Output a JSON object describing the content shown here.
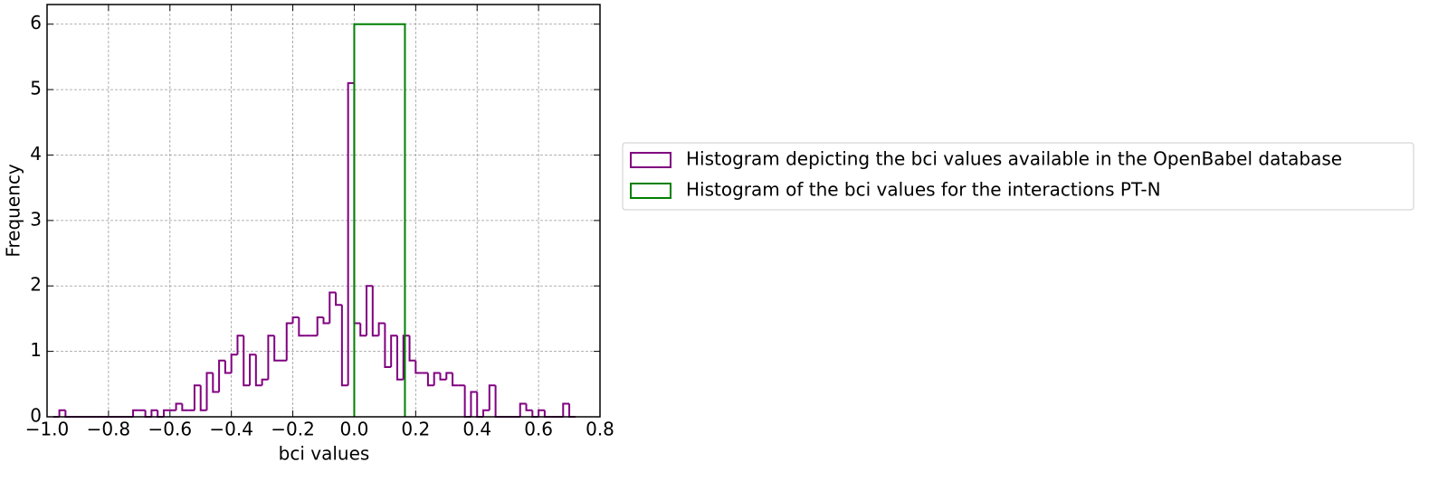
{
  "chart_data": {
    "type": "histogram",
    "xlabel": "bci values",
    "ylabel": "Frequency",
    "xlim": [
      -1.0,
      0.8
    ],
    "ylim": [
      0,
      6.3
    ],
    "xticks": [
      {
        "value": -1.0,
        "label": "−1.0"
      },
      {
        "value": -0.8,
        "label": "−0.8"
      },
      {
        "value": -0.6,
        "label": "−0.6"
      },
      {
        "value": -0.4,
        "label": "−0.4"
      },
      {
        "value": -0.2,
        "label": "−0.2"
      },
      {
        "value": 0.0,
        "label": "0.0"
      },
      {
        "value": 0.2,
        "label": "0.2"
      },
      {
        "value": 0.4,
        "label": "0.4"
      },
      {
        "value": 0.6,
        "label": "0.6"
      },
      {
        "value": 0.8,
        "label": "0.8"
      }
    ],
    "yticks": [
      0,
      1,
      2,
      3,
      4,
      5,
      6
    ],
    "grid": true,
    "legend": "right",
    "series": [
      {
        "name": "Histogram depicting the bci values available in the OpenBabel database",
        "color": "#800080",
        "bins": [
          -0.98,
          -0.96,
          -0.94,
          -0.92,
          -0.9,
          -0.88,
          -0.86,
          -0.84,
          -0.82,
          -0.8,
          -0.78,
          -0.76,
          -0.74,
          -0.72,
          -0.7,
          -0.68,
          -0.66,
          -0.64,
          -0.62,
          -0.6,
          -0.58,
          -0.56,
          -0.54,
          -0.52,
          -0.5,
          -0.48,
          -0.46,
          -0.44,
          -0.42,
          -0.4,
          -0.38,
          -0.36,
          -0.34,
          -0.32,
          -0.3,
          -0.28,
          -0.26,
          -0.24,
          -0.22,
          -0.2,
          -0.18,
          -0.16,
          -0.14,
          -0.12,
          -0.1,
          -0.08,
          -0.06,
          -0.04,
          -0.02,
          0.0,
          0.02,
          0.04,
          0.06,
          0.08,
          0.1,
          0.12,
          0.14,
          0.16,
          0.18,
          0.2,
          0.22,
          0.24,
          0.26,
          0.28,
          0.3,
          0.32,
          0.34,
          0.36,
          0.38,
          0.4,
          0.42,
          0.44,
          0.46,
          0.48,
          0.5,
          0.52,
          0.54,
          0.56,
          0.58,
          0.6,
          0.62,
          0.64,
          0.66,
          0.68,
          0.7,
          0.72
        ],
        "values": [
          0,
          0.1,
          0,
          0,
          0,
          0,
          0,
          0,
          0,
          0,
          0,
          0,
          0,
          0.1,
          0.1,
          0,
          0.1,
          0,
          0.1,
          0.1,
          0.2,
          0.1,
          0.1,
          0.48,
          0.1,
          0.67,
          0.38,
          0.86,
          0.67,
          0.95,
          1.24,
          0.48,
          0.95,
          0.48,
          0.57,
          1.24,
          0.86,
          0.86,
          1.43,
          1.52,
          1.24,
          1.24,
          1.24,
          1.52,
          1.43,
          1.9,
          1.71,
          0.48,
          5.1,
          1.43,
          1.24,
          2.0,
          1.24,
          1.43,
          0.76,
          1.24,
          0.57,
          1.24,
          0.86,
          0.67,
          0.67,
          0.48,
          0.67,
          0.57,
          0.67,
          0.48,
          0.48,
          0,
          0.38,
          0,
          0.1,
          0.48,
          0,
          0,
          0,
          0,
          0.2,
          0.1,
          0,
          0.1,
          0,
          0,
          0,
          0.2,
          0
        ]
      },
      {
        "name": "Histogram of the bci values for the interactions PT-N",
        "color": "#008000",
        "bins": [
          0.0,
          0.165
        ],
        "values": [
          6
        ]
      }
    ]
  }
}
